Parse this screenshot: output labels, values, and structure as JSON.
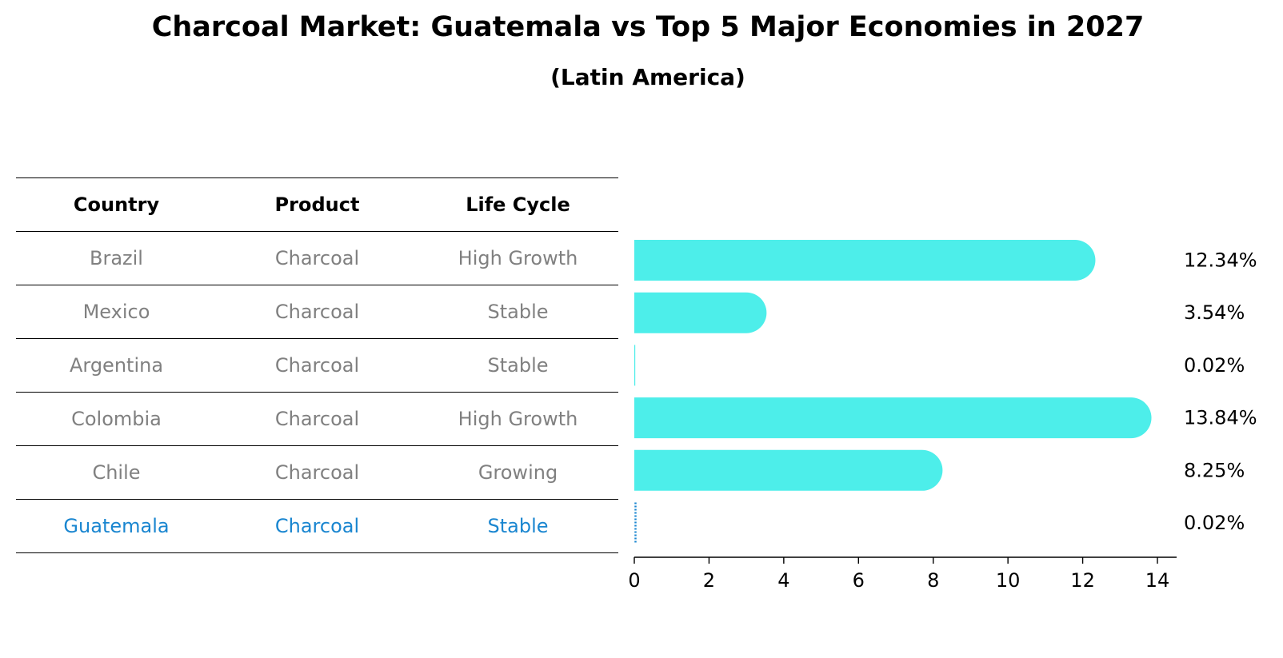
{
  "title": "Charcoal Market: Guatemala vs Top 5 Major Economies in 2027",
  "subtitle": "(Latin America)",
  "table": {
    "headers": [
      "Country",
      "Product",
      "Life Cycle"
    ],
    "rows": [
      [
        "Brazil",
        "Charcoal",
        "High Growth"
      ],
      [
        "Mexico",
        "Charcoal",
        "Stable"
      ],
      [
        "Argentina",
        "Charcoal",
        "Stable"
      ],
      [
        "Colombia",
        "Charcoal",
        "High Growth"
      ],
      [
        "Chile",
        "Charcoal",
        "Growing"
      ],
      [
        "Guatemala",
        "Charcoal",
        "Stable"
      ]
    ],
    "highlight_row": 5
  },
  "colors": {
    "bar": "#4deeea",
    "highlight": "#1a86d0",
    "muted_text": "#808080"
  },
  "chart_data": {
    "type": "bar",
    "orientation": "horizontal",
    "categories": [
      "Brazil",
      "Mexico",
      "Argentina",
      "Colombia",
      "Chile",
      "Guatemala"
    ],
    "values": [
      12.34,
      3.54,
      0.02,
      13.84,
      8.25,
      0.02
    ],
    "value_labels": [
      "12.34%",
      "3.54%",
      "0.02%",
      "13.84%",
      "8.25%",
      "0.02%"
    ],
    "xlim": [
      0,
      14.5
    ],
    "xticks": [
      0,
      2,
      4,
      6,
      8,
      10,
      12,
      14
    ],
    "tick_labels": [
      "0",
      "2",
      "4",
      "6",
      "8",
      "10",
      "12",
      "14"
    ],
    "grid": false,
    "highlight_category": "Guatemala"
  }
}
